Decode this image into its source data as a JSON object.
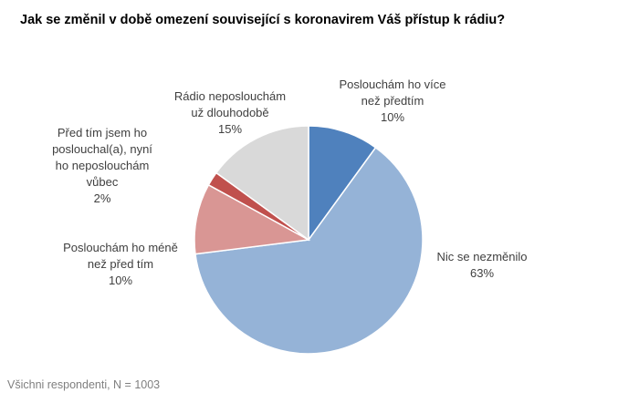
{
  "chart_data": {
    "type": "pie",
    "title": "Jak se změnil v době omezení související s koronavirem Váš přístup k rádiu?",
    "slices": [
      {
        "label": "Poslouchám ho více\nnež předtím",
        "value": 10,
        "value_label": "10%",
        "color": "#4f81bd"
      },
      {
        "label": "Nic se nezměnilo",
        "value": 63,
        "value_label": "63%",
        "color": "#95b3d7"
      },
      {
        "label": "Poslouchám ho méně\nnež před tím",
        "value": 10,
        "value_label": "10%",
        "color": "#d99694"
      },
      {
        "label": "Před tím jsem ho\nposlouchal(a), nyní\nho neposlouchám\nvůbec",
        "value": 2,
        "value_label": "2%",
        "color": "#c0504d"
      },
      {
        "label": "Rádio neposlouchám\nuž dlouhodobě",
        "value": 15,
        "value_label": "15%",
        "color": "#d9d9d9"
      }
    ],
    "start": "top",
    "direction": "clockwise",
    "legend": "none"
  },
  "footnote": "Všichni respondenti, N = 1003"
}
